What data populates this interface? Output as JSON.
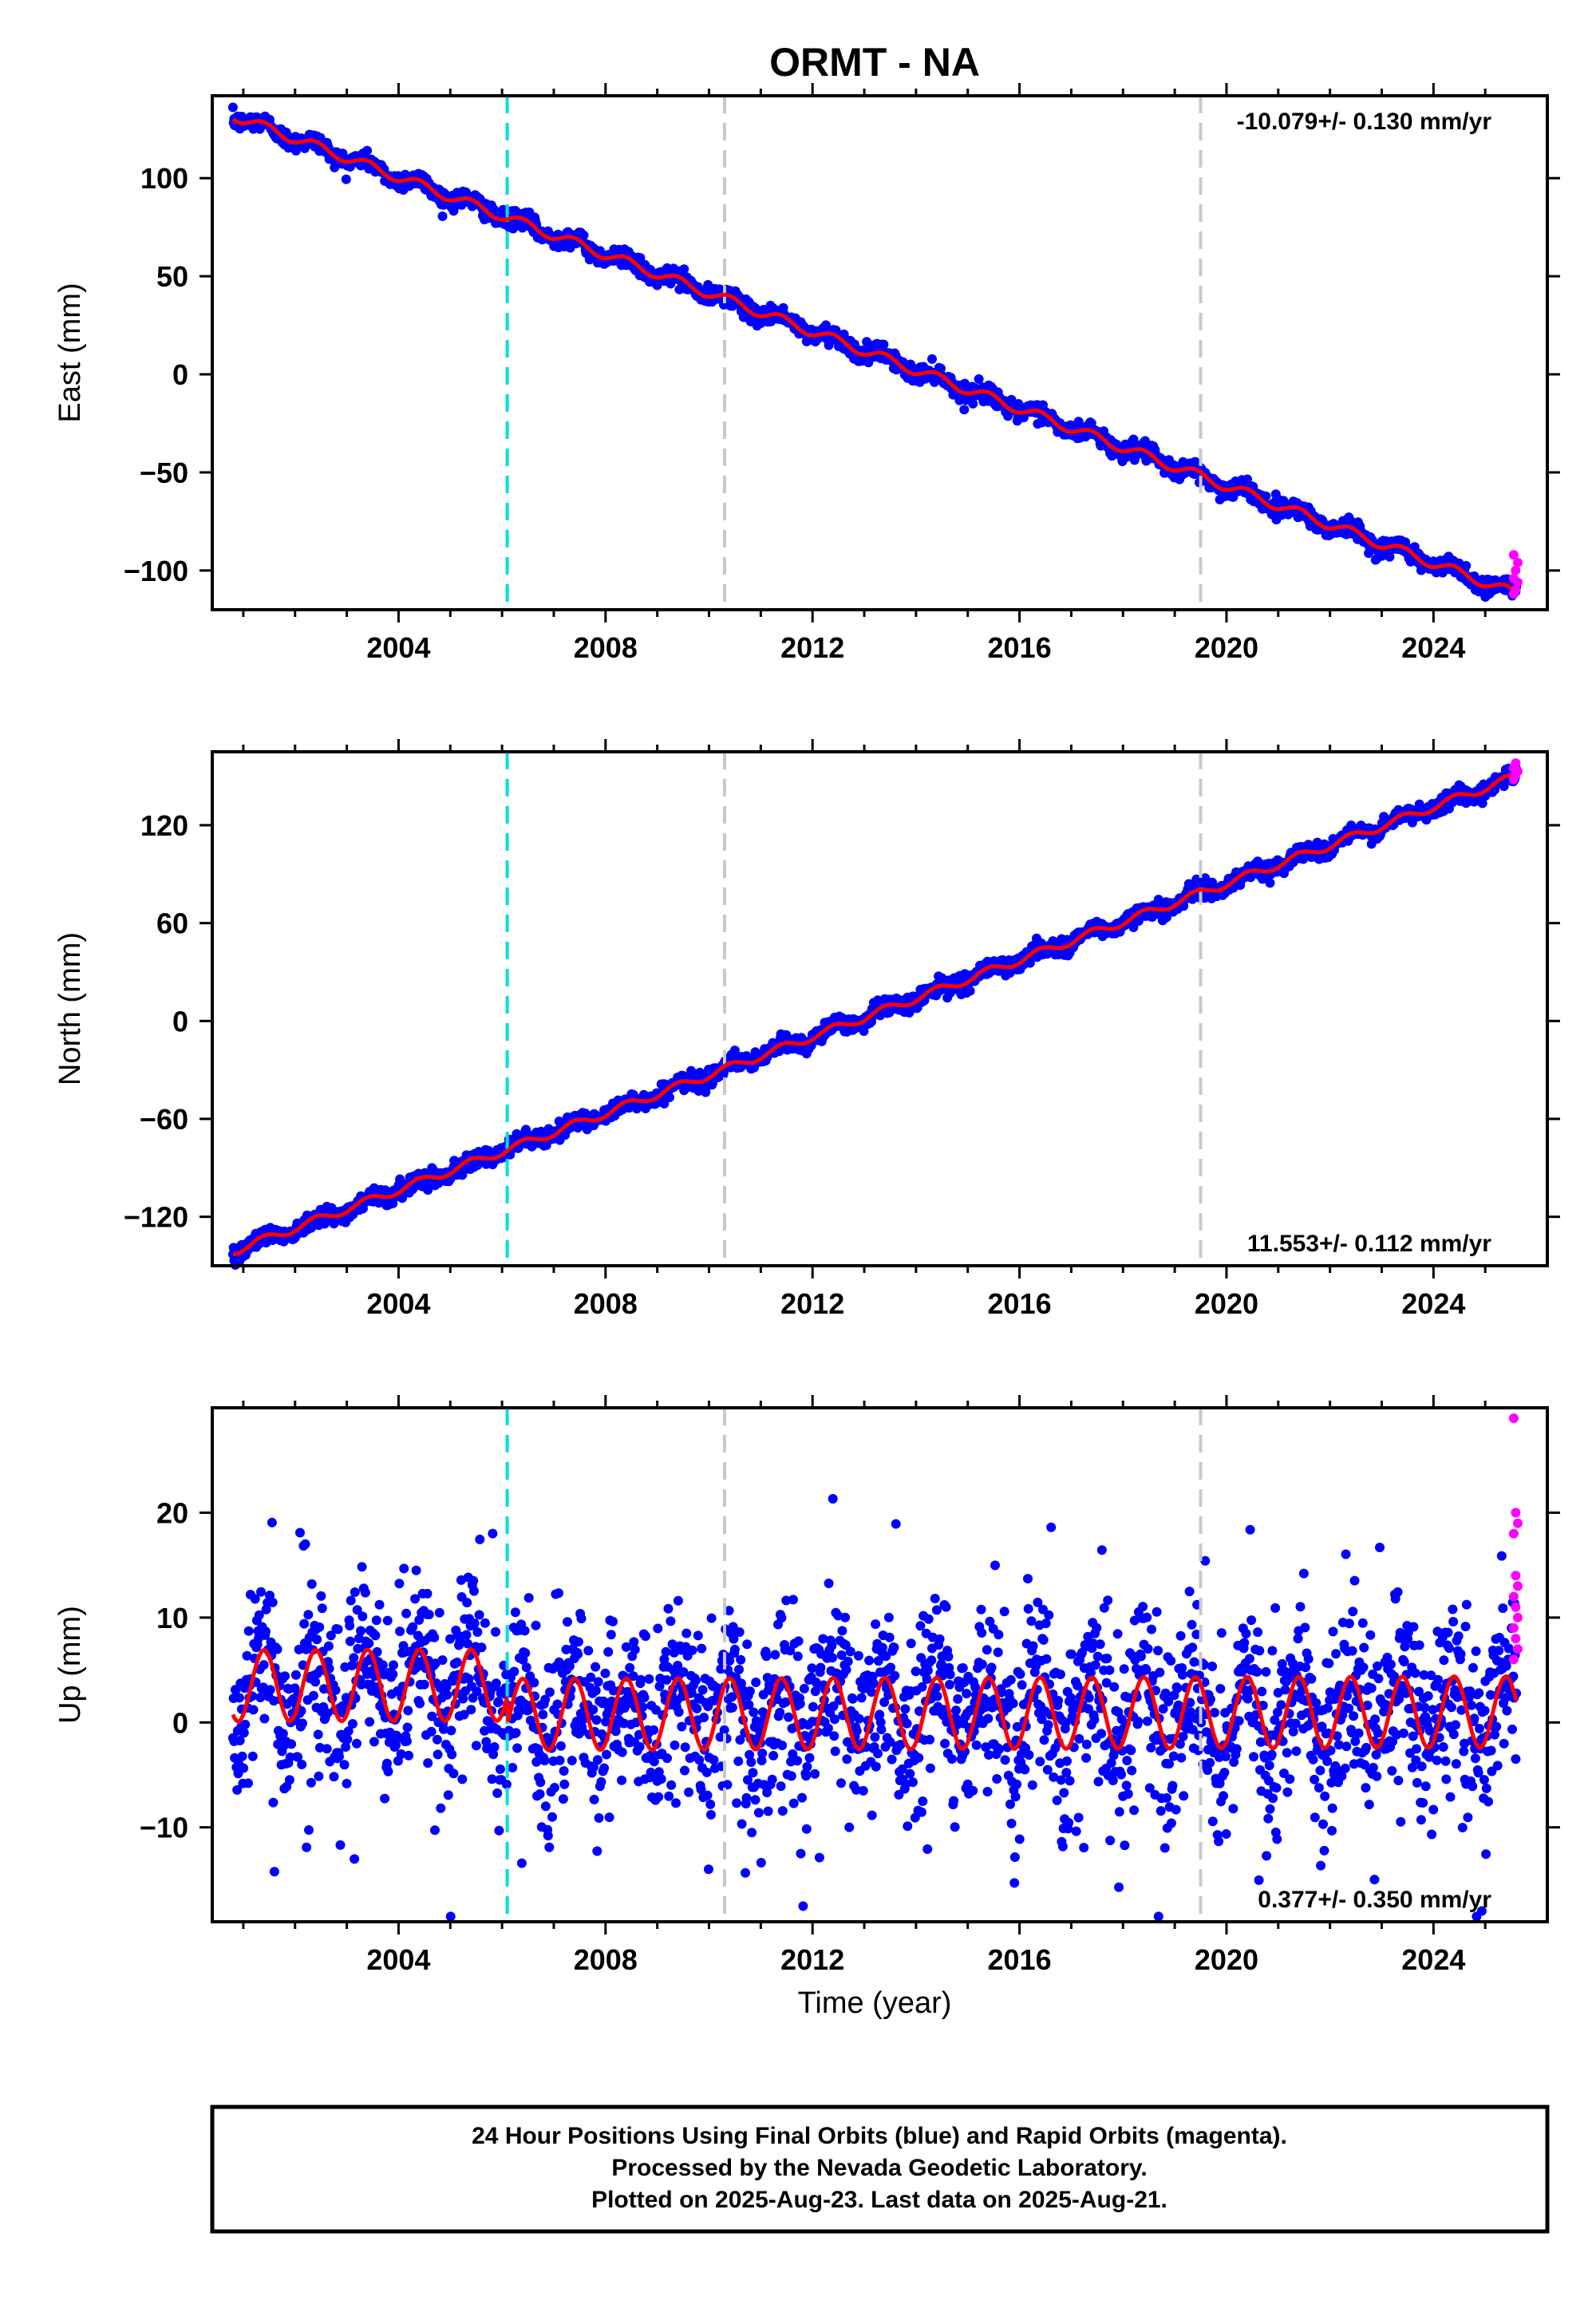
{
  "title": "ORMT - NA",
  "colors": {
    "final_orbits": "#0000ff",
    "rapid_orbits": "#ff00ff",
    "model": "#ff0000",
    "equipment_change": "#00e0e0",
    "other_change": "#c8c8c8"
  },
  "events": [
    {
      "year": 2006.1,
      "kind": "equipment_change"
    },
    {
      "year": 2010.3,
      "kind": "other_change"
    },
    {
      "year": 2019.5,
      "kind": "other_change"
    }
  ],
  "chart_data": [
    {
      "type": "scatter",
      "component": "east",
      "ylabel": "East (mm)",
      "rate": "-10.079+/- 0.130 mm/yr",
      "rate_position": "top-right",
      "xlim": [
        2000.4,
        2026.2
      ],
      "ylim": [
        -120,
        142
      ],
      "xticks": [
        2004,
        2008,
        2012,
        2016,
        2020,
        2024
      ],
      "yticks": [
        -100,
        -50,
        0,
        50,
        100
      ],
      "start": {
        "year": 2000.8,
        "value": 132
      },
      "end": {
        "year": 2025.6,
        "value": -112
      },
      "annual_amplitude": 2.5,
      "scatter_noise": 2.2,
      "rapid_orbit_values": [
        -112,
        -110,
        -106,
        -104,
        -100,
        -96,
        -92
      ]
    },
    {
      "type": "scatter",
      "component": "north",
      "ylabel": "North (mm)",
      "rate": "11.553+/- 0.112 mm/yr",
      "rate_position": "bottom-right",
      "xlim": [
        2000.4,
        2026.2
      ],
      "ylim": [
        -150,
        165
      ],
      "xticks": [
        2004,
        2008,
        2012,
        2016,
        2020,
        2024
      ],
      "yticks": [
        -120,
        -60,
        0,
        60,
        120
      ],
      "start": {
        "year": 2000.8,
        "value": -141
      },
      "end": {
        "year": 2025.6,
        "value": 150
      },
      "annual_amplitude": 2.5,
      "scatter_noise": 2.5,
      "rapid_orbit_values": [
        148,
        151,
        153,
        155,
        158
      ]
    },
    {
      "type": "scatter",
      "component": "up",
      "ylabel": "Up (mm)",
      "xlabel": "Time (year)",
      "rate": "0.377+/- 0.350 mm/yr",
      "rate_position": "bottom-right",
      "xlim": [
        2000.4,
        2026.2
      ],
      "ylim": [
        -19,
        30
      ],
      "xticks": [
        2004,
        2008,
        2012,
        2016,
        2020,
        2024
      ],
      "yticks": [
        -10,
        0,
        10,
        20
      ],
      "start": {
        "year": 2000.8,
        "value": 1.5
      },
      "end": {
        "year": 2025.6,
        "value": 1.8
      },
      "offset_before_2006": 2.0,
      "offset_after_2006": -0.8,
      "annual_amplitude": 3.4,
      "scatter_noise": 4.2,
      "rapid_orbit_values": [
        29,
        20,
        19,
        18,
        14,
        13,
        12,
        11,
        10,
        9,
        8,
        7,
        6
      ]
    }
  ],
  "footer": {
    "line1": "24 Hour Positions Using Final Orbits (blue) and Rapid Orbits (magenta).",
    "line2": "Processed by the Nevada Geodetic Laboratory.",
    "line3": "Plotted on 2025-Aug-23. Last data on 2025-Aug-21."
  }
}
